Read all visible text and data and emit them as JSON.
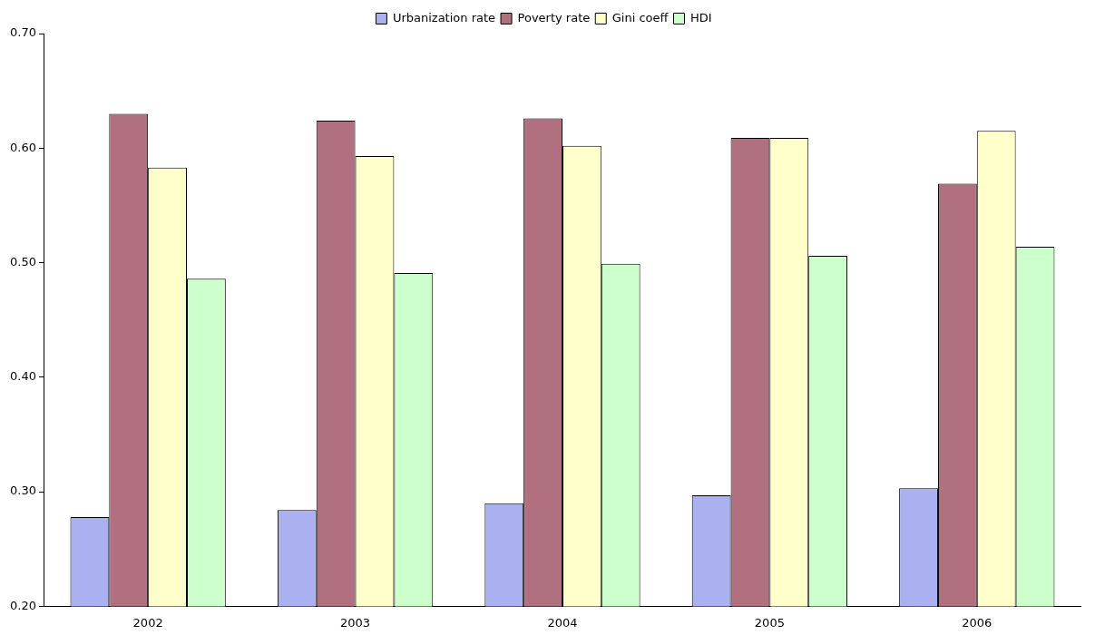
{
  "chart_data": {
    "type": "bar",
    "categories": [
      "2002",
      "2003",
      "2004",
      "2005",
      "2006"
    ],
    "series": [
      {
        "name": "Urbanization rate",
        "color": "#aab0f0",
        "values": [
          0.278,
          0.284,
          0.29,
          0.297,
          0.303
        ]
      },
      {
        "name": "Poverty rate",
        "color": "#b07080",
        "values": [
          0.63,
          0.624,
          0.626,
          0.609,
          0.569
        ]
      },
      {
        "name": "Gini coeff",
        "color": "#ffffcc",
        "values": [
          0.583,
          0.593,
          0.602,
          0.609,
          0.615
        ]
      },
      {
        "name": "HDI",
        "color": "#ccffcc",
        "values": [
          0.486,
          0.491,
          0.499,
          0.506,
          0.514
        ]
      }
    ],
    "ylim": [
      0.2,
      0.7
    ],
    "yticks": [
      {
        "value": 0.2,
        "label": "0.20"
      },
      {
        "value": 0.3,
        "label": "0.30"
      },
      {
        "value": 0.4,
        "label": "0.40"
      },
      {
        "value": 0.5,
        "label": "0.50"
      },
      {
        "value": 0.6,
        "label": "0.60"
      },
      {
        "value": 0.7,
        "label": "0.70"
      }
    ],
    "grid": false,
    "legend": "top"
  }
}
